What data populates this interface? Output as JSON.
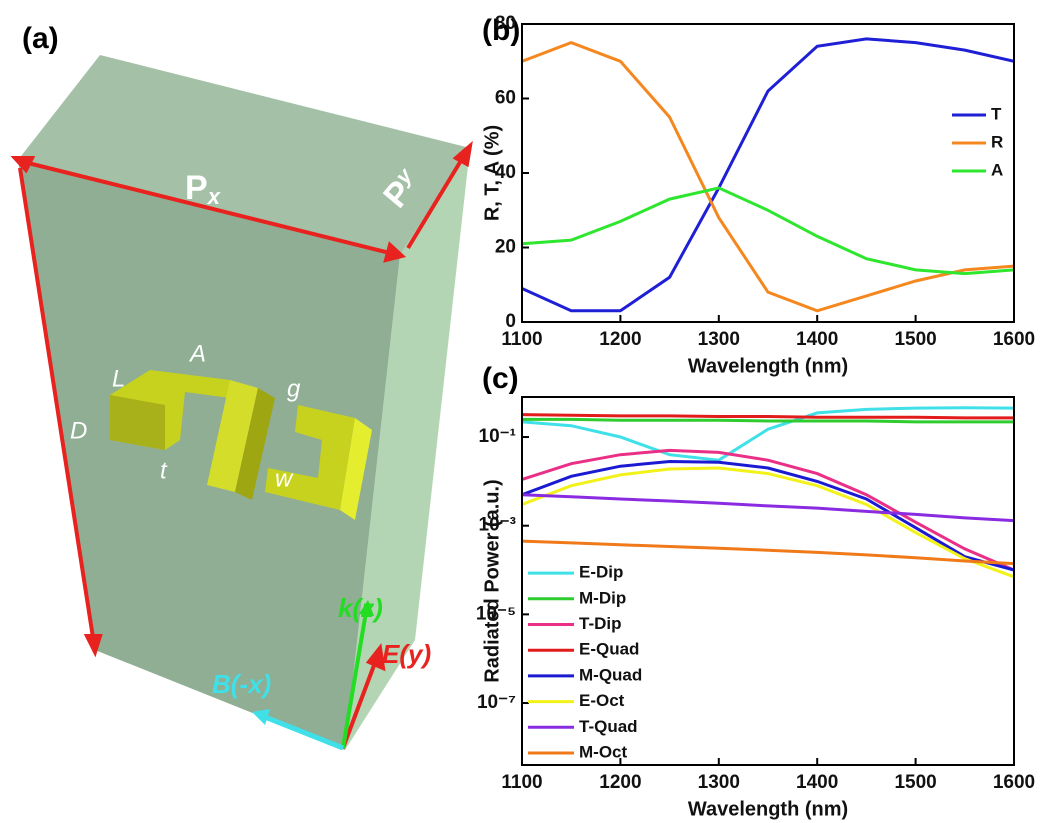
{
  "panel_labels": [
    "(a)",
    "(b)",
    "(c)"
  ],
  "diagram": {
    "period_x": {
      "text": "P",
      "sub": "x"
    },
    "period_y": {
      "text": "P",
      "sub": "y"
    },
    "dims": [
      "L",
      "A",
      "g",
      "D",
      "t",
      "w"
    ],
    "fields": [
      "k(z)",
      "E(y)",
      "B(-x)"
    ]
  },
  "chart_data": [
    {
      "type": "line",
      "xlabel": "Wavelength (nm)",
      "ylabel": "R, T, A (%)",
      "x": [
        1100,
        1150,
        1200,
        1250,
        1300,
        1350,
        1400,
        1450,
        1500,
        1550,
        1600
      ],
      "series": [
        {
          "name": "T",
          "color": "#1f1fd6",
          "values": [
            9,
            3,
            3,
            12,
            36,
            62,
            74,
            76,
            75,
            73,
            70
          ]
        },
        {
          "name": "R",
          "color": "#f5871f",
          "values": [
            70,
            75,
            70,
            55,
            28,
            8,
            3,
            7,
            11,
            14,
            15
          ]
        },
        {
          "name": "A",
          "color": "#2ee62e",
          "values": [
            21,
            22,
            27,
            33,
            36,
            30,
            23,
            17,
            14,
            13,
            14
          ]
        }
      ],
      "xlim": [
        1100,
        1600
      ],
      "xticks": [
        1100,
        1200,
        1300,
        1400,
        1500,
        1600
      ],
      "ylim": [
        0,
        80
      ],
      "yticks": [
        0,
        20,
        40,
        60,
        80
      ],
      "legend": "right"
    },
    {
      "type": "line",
      "xlabel": "Wavelength (nm)",
      "ylabel": "Radiated Power (a.u.)",
      "log_y": true,
      "x": [
        1100,
        1150,
        1200,
        1250,
        1300,
        1350,
        1400,
        1450,
        1500,
        1550,
        1600
      ],
      "series": [
        {
          "name": "E-Dip",
          "color": "#3fe0e8",
          "values": [
            0.22,
            0.18,
            0.1,
            0.04,
            0.03,
            0.15,
            0.35,
            0.42,
            0.45,
            0.46,
            0.45
          ]
        },
        {
          "name": "M-Dip",
          "color": "#2ecc2e",
          "values": [
            0.25,
            0.25,
            0.24,
            0.24,
            0.24,
            0.23,
            0.23,
            0.23,
            0.22,
            0.22,
            0.22
          ]
        },
        {
          "name": "T-Dip",
          "color": "#ea2f86",
          "values": [
            0.011,
            0.025,
            0.04,
            0.05,
            0.045,
            0.03,
            0.015,
            0.005,
            0.0012,
            0.0003,
            0.0001
          ]
        },
        {
          "name": "E-Quad",
          "color": "#e21b1b",
          "values": [
            0.32,
            0.31,
            0.3,
            0.3,
            0.29,
            0.29,
            0.28,
            0.28,
            0.28,
            0.27,
            0.27
          ]
        },
        {
          "name": "M-Quad",
          "color": "#1a1ad2",
          "values": [
            0.005,
            0.013,
            0.022,
            0.028,
            0.027,
            0.02,
            0.01,
            0.004,
            0.0009,
            0.0002,
            0.0001
          ]
        },
        {
          "name": "E-Oct",
          "color": "#f2f21a",
          "values": [
            0.003,
            0.008,
            0.014,
            0.019,
            0.02,
            0.015,
            0.008,
            0.003,
            0.0007,
            0.00018,
            7e-05
          ]
        },
        {
          "name": "T-Quad",
          "color": "#8a2be2",
          "values": [
            0.005,
            0.0045,
            0.004,
            0.0036,
            0.0032,
            0.0028,
            0.0025,
            0.0021,
            0.0018,
            0.0015,
            0.0013
          ]
        },
        {
          "name": "M-Oct",
          "color": "#f07a1a",
          "values": [
            0.00045,
            0.00041,
            0.00037,
            0.00034,
            0.00031,
            0.00028,
            0.00025,
            0.00022,
            0.00019,
            0.00016,
            0.00014
          ]
        }
      ],
      "xlim": [
        1100,
        1600
      ],
      "xticks": [
        1100,
        1200,
        1300,
        1400,
        1500,
        1600
      ],
      "ylim": [
        4e-09,
        0.8
      ],
      "yticks": [
        {
          "value": 1e-07,
          "label": "10⁻⁷"
        },
        {
          "value": 1e-05,
          "label": "10⁻⁵"
        },
        {
          "value": 0.001,
          "label": "10⁻³"
        },
        {
          "value": 0.1,
          "label": "10⁻¹"
        }
      ],
      "legend": "lower left"
    }
  ]
}
